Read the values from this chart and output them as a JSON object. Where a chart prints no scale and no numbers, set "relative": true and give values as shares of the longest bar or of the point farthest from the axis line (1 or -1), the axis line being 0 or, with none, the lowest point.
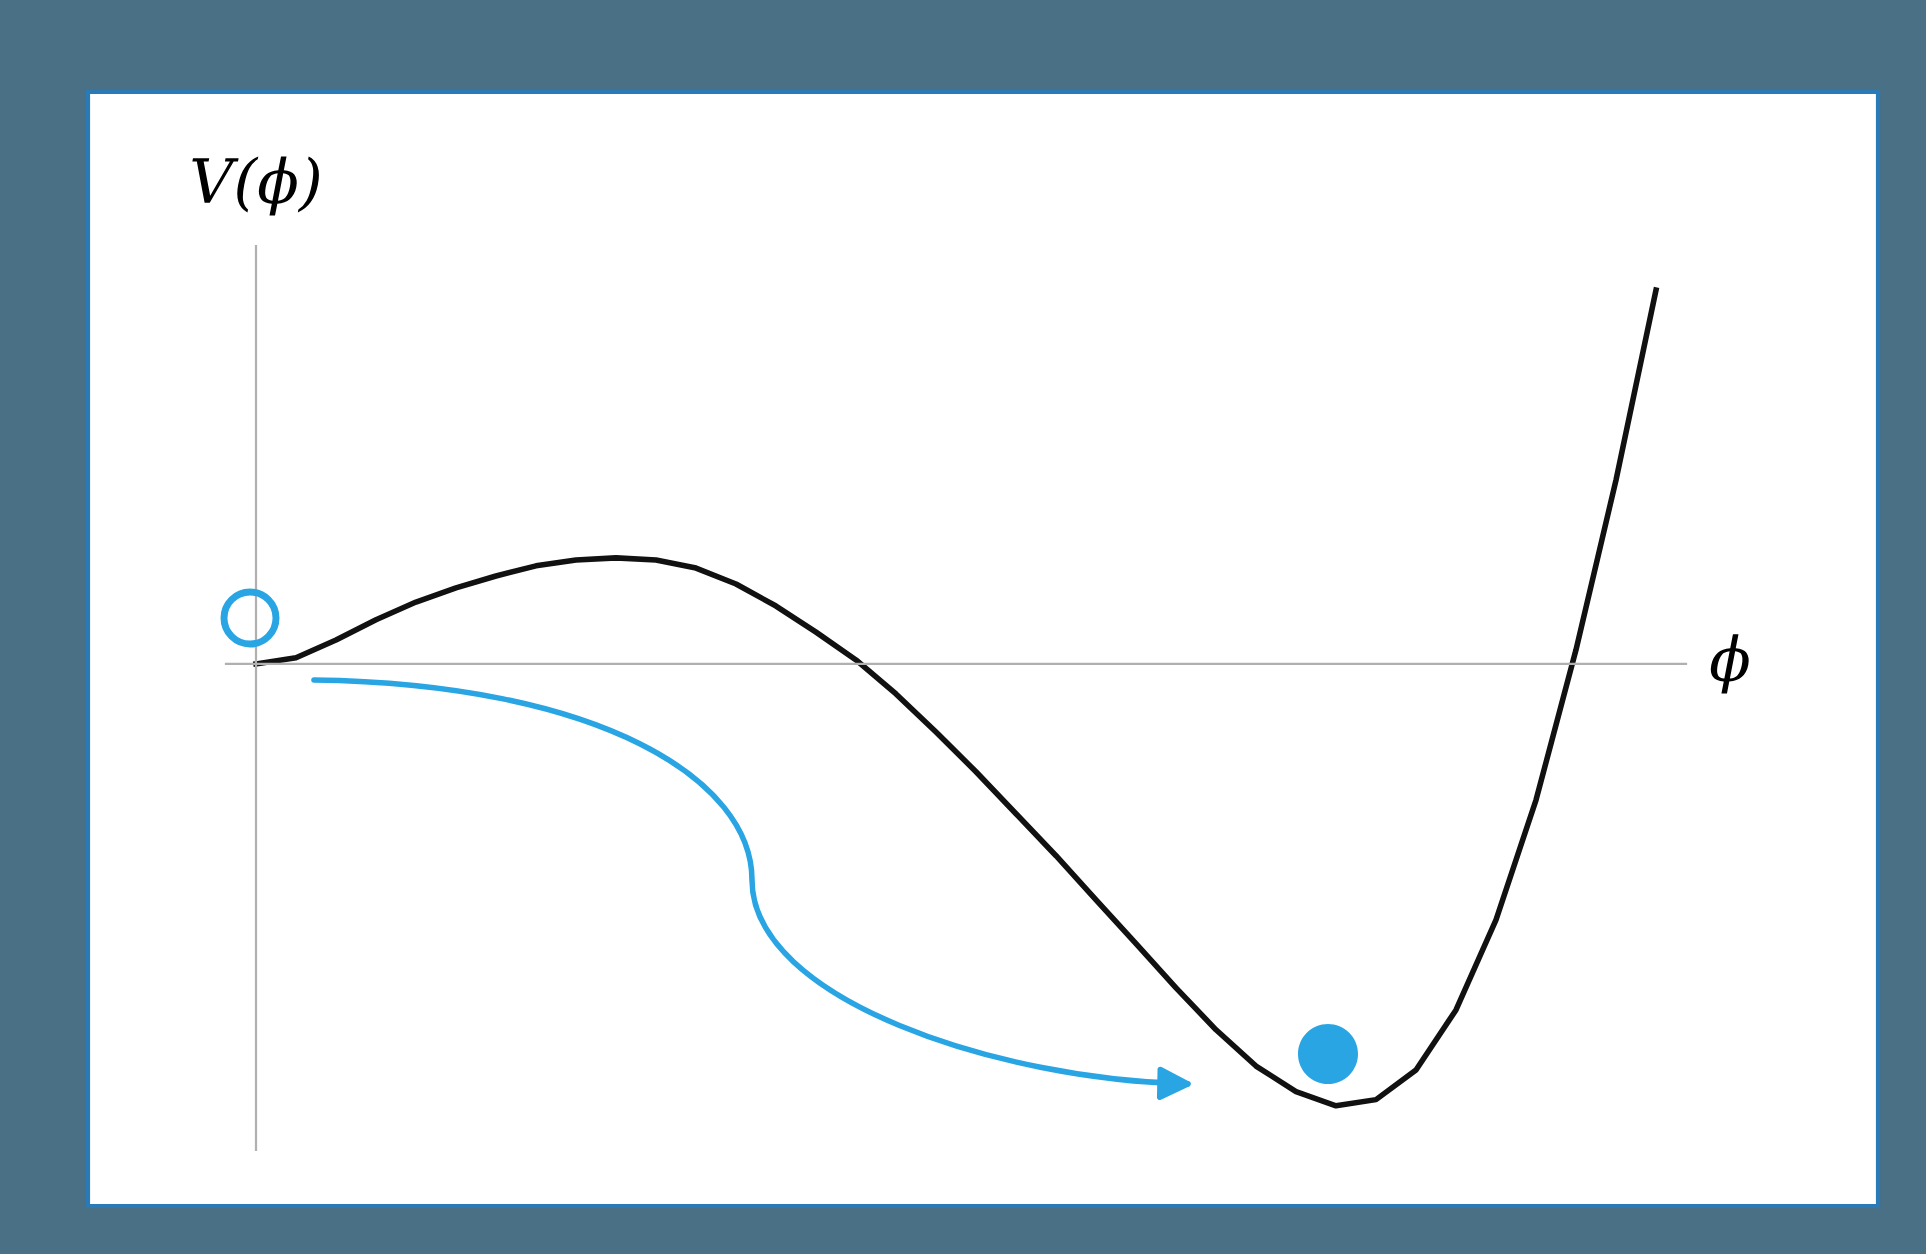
{
  "chart_data": {
    "type": "line",
    "relative": true,
    "xlabel": "ϕ",
    "ylabel": "V(ϕ)",
    "categories": [
      null,
      null,
      null,
      null,
      null,
      null,
      null,
      null,
      null,
      null,
      null,
      null,
      null,
      null,
      null,
      null,
      null,
      null,
      null,
      null,
      null,
      null,
      null,
      null,
      null,
      null,
      null,
      null,
      null,
      null,
      null,
      null,
      null,
      null,
      null,
      null
    ],
    "series": [
      {
        "color": "#111111",
        "values": [
          0,
          0.014,
          0.054,
          0.1,
          0.14,
          0.172,
          0.199,
          0.222,
          0.235,
          0.24,
          0.235,
          0.217,
          0.181,
          0.131,
          0.072,
          0.009,
          -0.068,
          -0.154,
          -0.244,
          -0.339,
          -0.434,
          -0.534,
          -0.633,
          -0.733,
          -0.828,
          -0.91,
          -0.968,
          -1,
          -0.986,
          -0.919,
          -0.783,
          -0.579,
          -0.308,
          0.032,
          0.416,
          0.846
        ]
      }
    ],
    "grid": false,
    "legend": false,
    "marker": "none",
    "line_style": "solid"
  }
}
